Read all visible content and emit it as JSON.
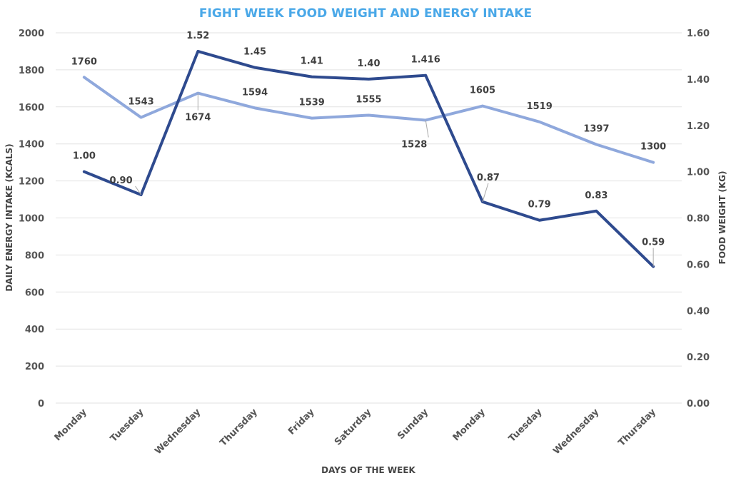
{
  "chart_data": {
    "type": "line",
    "title": "FIGHT WEEK FOOD WEIGHT AND ENERGY INTAKE",
    "xlabel": "DAYS OF THE WEEK",
    "ylabel": "DAILY ENERGY INTAKE (KCALS)",
    "y2label": "FOOD WEIGHT (KG)",
    "categories": [
      "Monday",
      "Tuesday",
      "Wednesday",
      "Thursday",
      "Friday",
      "Saturday",
      "Sunday",
      "Monday",
      "Tuesday",
      "Wednesday",
      "Thursday"
    ],
    "ylim": [
      0,
      2000
    ],
    "yticks": [
      "0",
      "200",
      "400",
      "600",
      "800",
      "1000",
      "1200",
      "1400",
      "1600",
      "1800",
      "2000"
    ],
    "y2lim": [
      0,
      1.6
    ],
    "y2ticks": [
      "0.00",
      "0.20",
      "0.40",
      "0.60",
      "0.80",
      "1.00",
      "1.20",
      "1.40",
      "1.60"
    ],
    "grid": true,
    "series": [
      {
        "name": "Daily Energy Intake (kcals)",
        "axis": "left",
        "color": "#8fa8dc",
        "values": [
          1760,
          1543,
          1674,
          1594,
          1539,
          1555,
          1528,
          1605,
          1519,
          1397,
          1300
        ],
        "labels": [
          "1760",
          "1543",
          "1674",
          "1594",
          "1539",
          "1555",
          "1528",
          "1605",
          "1519",
          "1397",
          "1300"
        ]
      },
      {
        "name": "Food Weight (kg)",
        "axis": "right",
        "color": "#2e4a8e",
        "values": [
          1.0,
          0.9,
          1.52,
          1.45,
          1.41,
          1.4,
          1.416,
          0.87,
          0.79,
          0.83,
          0.59
        ],
        "labels": [
          "1.00",
          "0.90",
          "1.52",
          "1.45",
          "1.41",
          "1.40",
          "1.416",
          "0.87",
          "0.79",
          "0.83",
          "0.59"
        ]
      }
    ]
  }
}
